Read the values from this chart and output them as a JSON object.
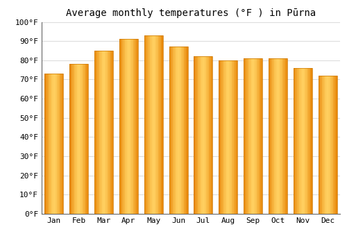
{
  "title": "Average monthly temperatures (°F ) in Pūrna",
  "months": [
    "Jan",
    "Feb",
    "Mar",
    "Apr",
    "May",
    "Jun",
    "Jul",
    "Aug",
    "Sep",
    "Oct",
    "Nov",
    "Dec"
  ],
  "values": [
    73,
    78,
    85,
    91,
    93,
    87,
    82,
    80,
    81,
    81,
    76,
    72
  ],
  "bar_color": "#FFA500",
  "bar_light_color": "#FFD050",
  "background_color": "#FFFFFF",
  "grid_color": "#DDDDDD",
  "ylim": [
    0,
    100
  ],
  "ytick_step": 10,
  "title_fontsize": 10,
  "tick_fontsize": 8,
  "font_family": "monospace"
}
